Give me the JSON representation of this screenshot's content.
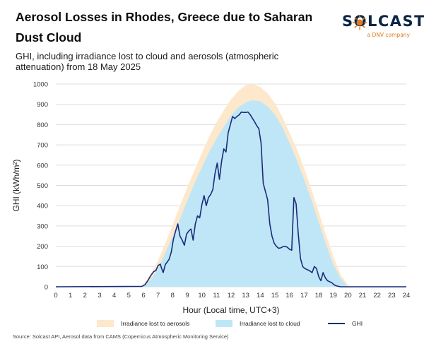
{
  "title": "Aerosol Losses in Rhodes, Greece due to Saharan Dust Cloud",
  "subtitle": "GHI, including irradiance lost to cloud and aerosols (atmospheric attenuation) from 18 May 2025",
  "logo": {
    "word": "SOLCAST",
    "sub": "a DNV company"
  },
  "source": "Source: Solcast API, Aerosol data from CAMS (Copernicus Atmospheric Monitoring Service)",
  "legend": {
    "aerosols": "Irradiance lost to aerosols",
    "cloud": "Irradiance lost to cloud",
    "ghi": "GHI"
  },
  "colors": {
    "aerosols": "#fde8cc",
    "cloud": "#bfe6f6",
    "ghi": "#1b2b7a",
    "grid": "#dddddd",
    "logo_navy": "#0b2545",
    "logo_orange": "#e07b22"
  },
  "chart_data": {
    "type": "area",
    "xlabel": "Hour (Local time, UTC+3)",
    "ylabel": "GHI (kWh/m²)",
    "xlim": [
      0,
      24
    ],
    "ylim": [
      0,
      1000
    ],
    "x_ticks": [
      0,
      1,
      2,
      3,
      4,
      5,
      6,
      7,
      8,
      9,
      10,
      11,
      12,
      13,
      14,
      15,
      16,
      17,
      18,
      19,
      20,
      21,
      22,
      23,
      24
    ],
    "y_ticks": [
      0,
      100,
      200,
      300,
      400,
      500,
      600,
      700,
      800,
      900,
      1000
    ],
    "grid": true,
    "legend_position": "bottom",
    "series": [
      {
        "name": "Irradiance lost to aerosols",
        "kind": "area",
        "x": [
          0,
          5.8,
          6,
          6.5,
          7,
          7.5,
          8,
          8.5,
          9,
          9.5,
          10,
          10.5,
          11,
          11.5,
          12,
          12.5,
          13,
          13.5,
          14,
          14.5,
          15,
          15.5,
          16,
          16.5,
          17,
          17.5,
          18,
          18.5,
          19,
          19.5,
          20,
          20.2,
          24
        ],
        "y": [
          0,
          0,
          15,
          60,
          130,
          215,
          305,
          400,
          490,
          575,
          660,
          740,
          810,
          870,
          925,
          965,
          995,
          1000,
          985,
          955,
          905,
          840,
          760,
          680,
          585,
          480,
          370,
          255,
          150,
          60,
          10,
          0,
          0
        ]
      },
      {
        "name": "Irradiance lost to cloud",
        "kind": "area",
        "x": [
          0,
          6,
          6.5,
          7,
          7.5,
          8,
          8.5,
          9,
          9.5,
          10,
          10.5,
          11,
          11.5,
          12,
          12.5,
          13,
          13.5,
          14,
          14.5,
          15,
          15.5,
          16,
          16.5,
          17,
          17.5,
          18,
          18.5,
          19,
          19.5,
          20,
          24
        ],
        "y": [
          0,
          0,
          35,
          90,
          170,
          250,
          335,
          425,
          510,
          590,
          665,
          730,
          790,
          845,
          885,
          910,
          920,
          915,
          890,
          850,
          790,
          710,
          625,
          530,
          430,
          320,
          210,
          110,
          40,
          0,
          0
        ]
      },
      {
        "name": "GHI",
        "kind": "line",
        "x": [
          0,
          5.9,
          6.1,
          6.3,
          6.5,
          6.7,
          6.85,
          7,
          7.15,
          7.25,
          7.35,
          7.5,
          7.6,
          7.75,
          7.9,
          8.05,
          8.2,
          8.35,
          8.5,
          8.65,
          8.8,
          8.95,
          9.1,
          9.25,
          9.4,
          9.55,
          9.7,
          9.85,
          10,
          10.15,
          10.3,
          10.45,
          10.6,
          10.75,
          10.9,
          11.05,
          11.2,
          11.35,
          11.5,
          11.65,
          11.8,
          11.95,
          12.1,
          12.25,
          12.4,
          12.55,
          12.7,
          12.85,
          13,
          13.15,
          13.3,
          13.45,
          13.6,
          13.75,
          13.9,
          14.05,
          14.2,
          14.35,
          14.5,
          14.65,
          14.8,
          14.95,
          15.1,
          15.25,
          15.4,
          15.55,
          15.7,
          15.85,
          16,
          16.15,
          16.3,
          16.45,
          16.6,
          16.75,
          16.9,
          17.05,
          17.2,
          17.35,
          17.45,
          17.55,
          17.7,
          17.85,
          18,
          18.15,
          18.3,
          18.45,
          18.6,
          18.75,
          18.9,
          19.05,
          19.2,
          19.35,
          19.5,
          19.65,
          19.8,
          19.95,
          20.1,
          24
        ],
        "y": [
          0,
          2,
          10,
          30,
          55,
          75,
          80,
          105,
          112,
          90,
          70,
          110,
          120,
          135,
          170,
          235,
          275,
          310,
          250,
          230,
          205,
          260,
          275,
          285,
          230,
          310,
          350,
          340,
          405,
          450,
          400,
          440,
          455,
          480,
          560,
          610,
          530,
          620,
          680,
          665,
          760,
          800,
          840,
          830,
          840,
          848,
          862,
          860,
          860,
          862,
          850,
          832,
          815,
          795,
          780,
          710,
          510,
          470,
          430,
          310,
          250,
          215,
          200,
          190,
          192,
          198,
          200,
          195,
          185,
          180,
          440,
          410,
          260,
          140,
          100,
          90,
          85,
          80,
          75,
          70,
          100,
          90,
          50,
          30,
          70,
          45,
          30,
          25,
          20,
          10,
          5,
          2,
          0,
          0,
          0,
          0,
          0,
          0
        ]
      }
    ]
  }
}
